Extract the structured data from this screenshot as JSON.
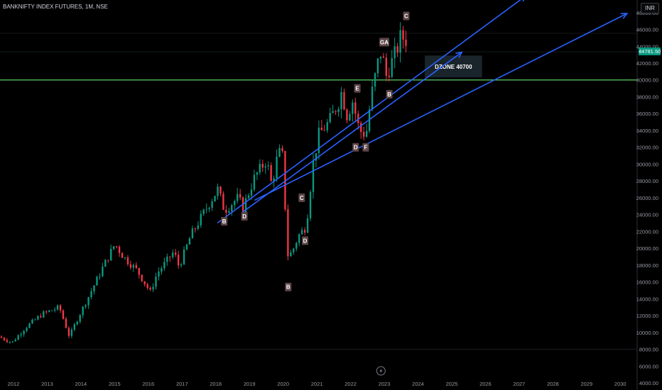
{
  "header": {
    "symbol_title": "BANKNIFTY INDEX FUTURES, 1M, NSE"
  },
  "currency_button": "INR",
  "last_price": "44781.50",
  "colors": {
    "up": "#089981",
    "down": "#f23645",
    "trendline": "#2962ff",
    "support": "#4caf50",
    "zone": "#5b6b7a"
  },
  "chart_data": {
    "type": "candlestick",
    "y_axis": {
      "min": 4000,
      "max": 49500,
      "position": "right",
      "ticks": [
        "4000.00",
        "6000.00",
        "8000.00",
        "10000.00",
        "12000.00",
        "14000.00",
        "16000.00",
        "18000.00",
        "20000.00",
        "22000.00",
        "24000.00",
        "26000.00",
        "28000.00",
        "30000.00",
        "32000.00",
        "34000.00",
        "36000.00",
        "38000.00",
        "40000.00",
        "42000.00",
        "44000.00",
        "46000.00",
        "48000.00"
      ]
    },
    "x_axis": {
      "start": 2011.6,
      "end": 2030.5,
      "ticks": [
        "2012",
        "2013",
        "2014",
        "2015",
        "2016",
        "2017",
        "2018",
        "2019",
        "2020",
        "2021",
        "2022",
        "2023",
        "2024",
        "2025",
        "2026",
        "2027",
        "2028",
        "2029",
        "2030"
      ]
    },
    "close_anchors": [
      [
        2011.6,
        9500
      ],
      [
        2012.0,
        8800
      ],
      [
        2012.4,
        10600
      ],
      [
        2012.9,
        12200
      ],
      [
        2013.4,
        13000
      ],
      [
        2013.7,
        9500
      ],
      [
        2013.95,
        11700
      ],
      [
        2014.3,
        14500
      ],
      [
        2014.7,
        17800
      ],
      [
        2015.05,
        20500
      ],
      [
        2015.3,
        19000
      ],
      [
        2015.7,
        17400
      ],
      [
        2016.1,
        14800
      ],
      [
        2016.3,
        17000
      ],
      [
        2016.8,
        19600
      ],
      [
        2016.95,
        17800
      ],
      [
        2017.3,
        21500
      ],
      [
        2017.8,
        25000
      ],
      [
        2018.1,
        27000
      ],
      [
        2018.3,
        24500
      ],
      [
        2018.7,
        26000
      ],
      [
        2018.85,
        24800
      ],
      [
        2019.2,
        28500
      ],
      [
        2019.55,
        30500
      ],
      [
        2019.7,
        27500
      ],
      [
        2019.9,
        31500
      ],
      [
        2020.05,
        30800
      ],
      [
        2020.15,
        19100
      ],
      [
        2020.3,
        19500
      ],
      [
        2020.5,
        21500
      ],
      [
        2020.7,
        22500
      ],
      [
        2020.8,
        25000
      ],
      [
        2020.9,
        29500
      ],
      [
        2021.1,
        33500
      ],
      [
        2021.4,
        35000
      ],
      [
        2021.7,
        37500
      ],
      [
        2021.8,
        39000
      ],
      [
        2021.9,
        35500
      ],
      [
        2022.1,
        37500
      ],
      [
        2022.3,
        34000
      ],
      [
        2022.5,
        33500
      ],
      [
        2022.65,
        38000
      ],
      [
        2022.85,
        42000
      ],
      [
        2022.95,
        43500
      ],
      [
        2023.1,
        40500
      ],
      [
        2023.3,
        42500
      ],
      [
        2023.45,
        44000
      ],
      [
        2023.55,
        45500
      ],
      [
        2023.62,
        44781
      ]
    ],
    "pattern_labels": [
      {
        "text": "B",
        "x": 2018.25,
        "y": 23200
      },
      {
        "text": "D",
        "x": 2018.85,
        "y": 23800
      },
      {
        "text": "B",
        "x": 2020.15,
        "y": 15400
      },
      {
        "text": "C",
        "x": 2020.55,
        "y": 26000
      },
      {
        "text": "D",
        "x": 2020.65,
        "y": 20900
      },
      {
        "text": "E",
        "x": 2022.2,
        "y": 39000
      },
      {
        "text": "D",
        "x": 2022.15,
        "y": 32000
      },
      {
        "text": "F",
        "x": 2022.45,
        "y": 32000
      },
      {
        "text": "B",
        "x": 2023.15,
        "y": 38300
      },
      {
        "text": "GA",
        "x": 2023.0,
        "y": 44500
      },
      {
        "text": "C",
        "x": 2023.65,
        "y": 47600
      }
    ],
    "zone": {
      "label": "DZONE 40700",
      "x1": 2024.2,
      "x2": 2025.9,
      "y1": 40300,
      "y2": 42900
    },
    "support_line": {
      "y": 40000
    },
    "trendlines": [
      {
        "x1": 2018.05,
        "y1": 23000,
        "x2": 2027.2,
        "y2": 50000
      },
      {
        "x1": 2018.8,
        "y1": 24300,
        "x2": 2025.3,
        "y2": 43300
      },
      {
        "x1": 2019.15,
        "y1": 25700,
        "x2": 2030.2,
        "y2": 47900
      }
    ]
  }
}
